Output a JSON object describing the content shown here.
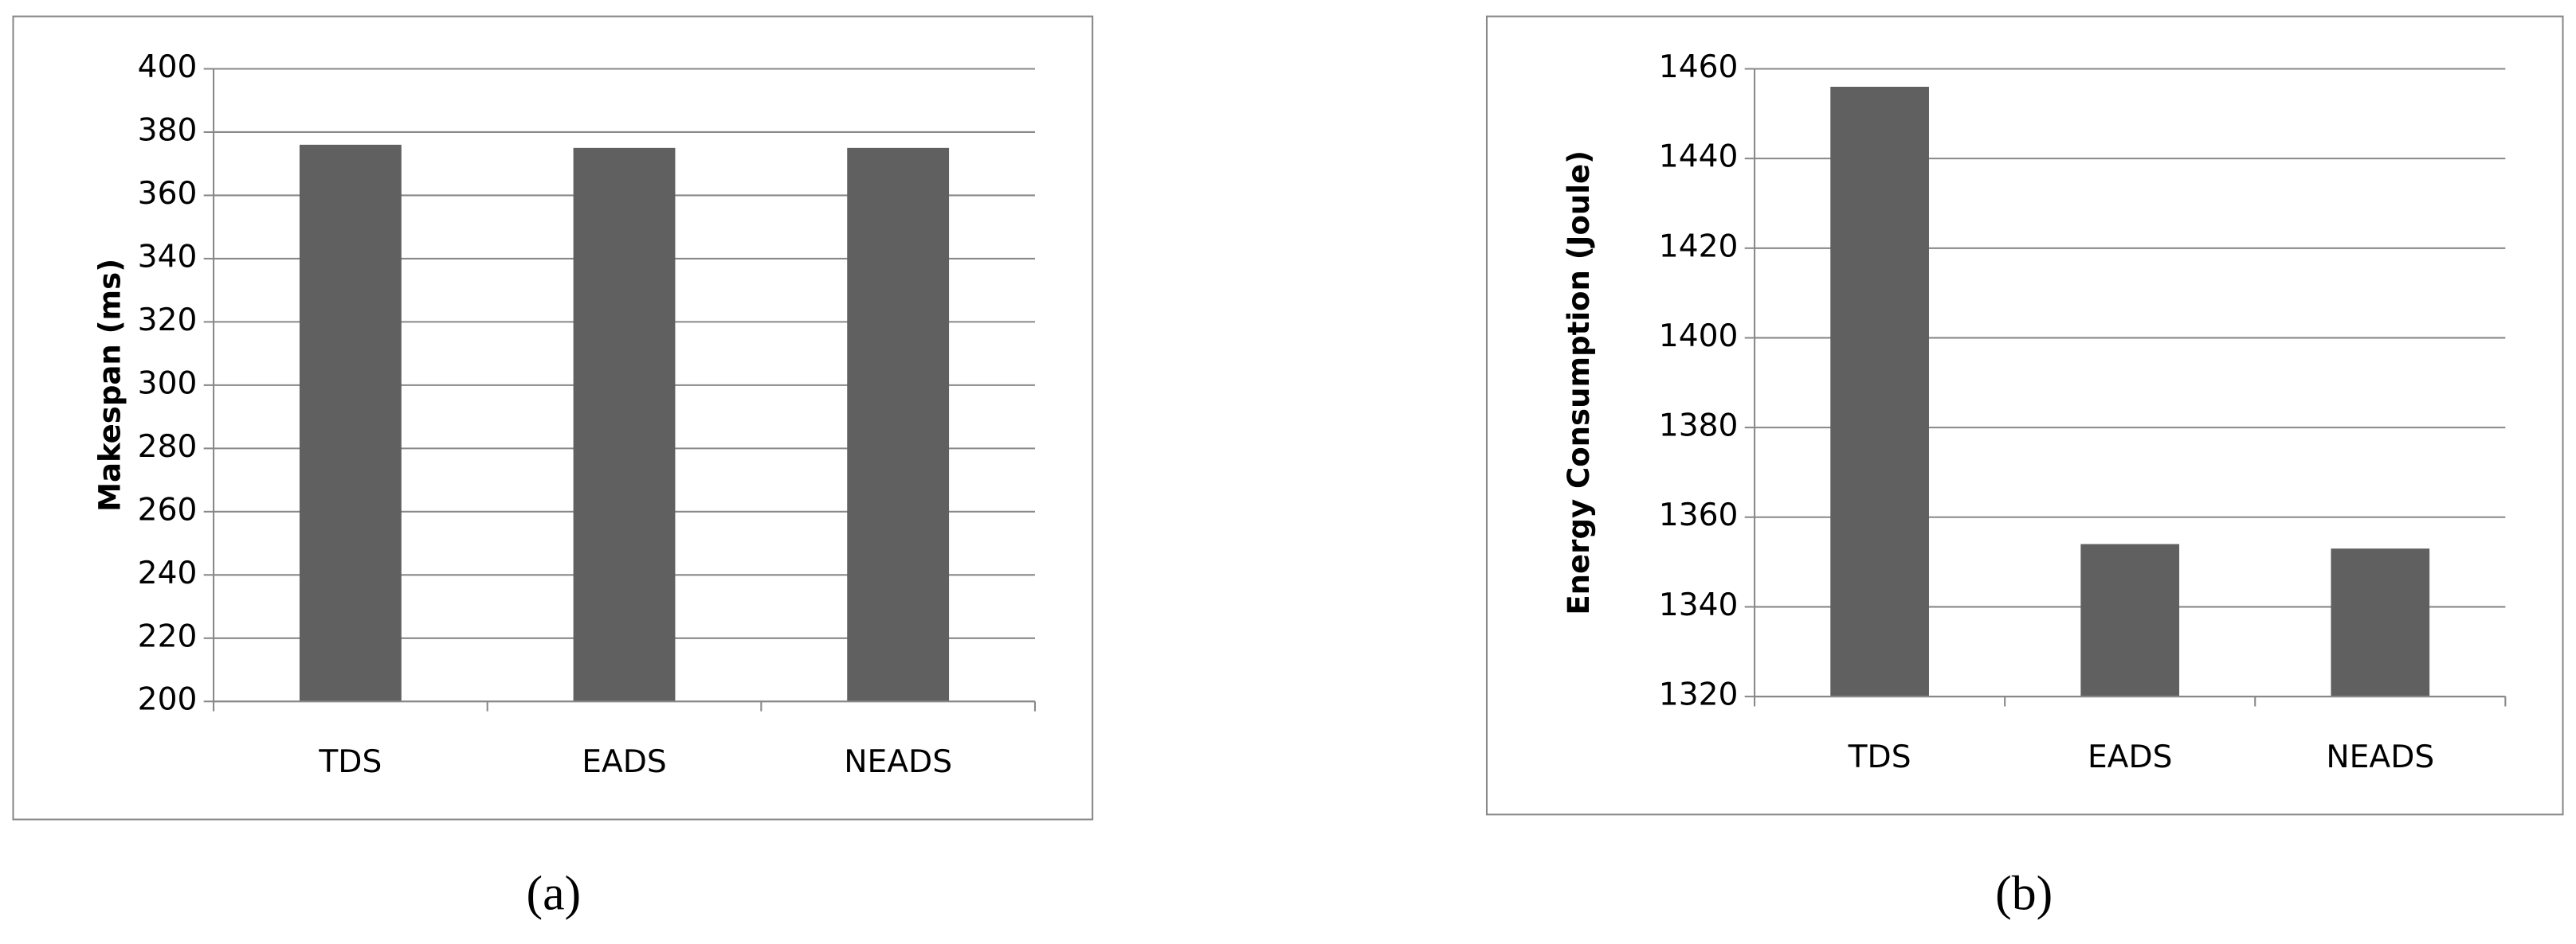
{
  "chart_data": [
    {
      "type": "bar",
      "y_label": "Makespan (ms)",
      "categories": [
        "TDS",
        "EADS",
        "NEADS"
      ],
      "values": [
        376,
        375,
        375
      ],
      "color": "#606060",
      "ylim": [
        200,
        400
      ],
      "yticks": [
        200,
        220,
        240,
        260,
        280,
        300,
        320,
        340,
        360,
        380,
        400
      ],
      "grid": true,
      "caption": "(a)"
    },
    {
      "type": "bar",
      "y_label": "Energy Consumption (Joule)",
      "categories": [
        "TDS",
        "EADS",
        "NEADS"
      ],
      "values": [
        1456,
        1354,
        1353
      ],
      "color": "#606060",
      "ylim": [
        1320,
        1460
      ],
      "yticks": [
        1320,
        1340,
        1360,
        1380,
        1400,
        1420,
        1440,
        1460
      ],
      "grid": true,
      "caption": "(b)"
    }
  ]
}
